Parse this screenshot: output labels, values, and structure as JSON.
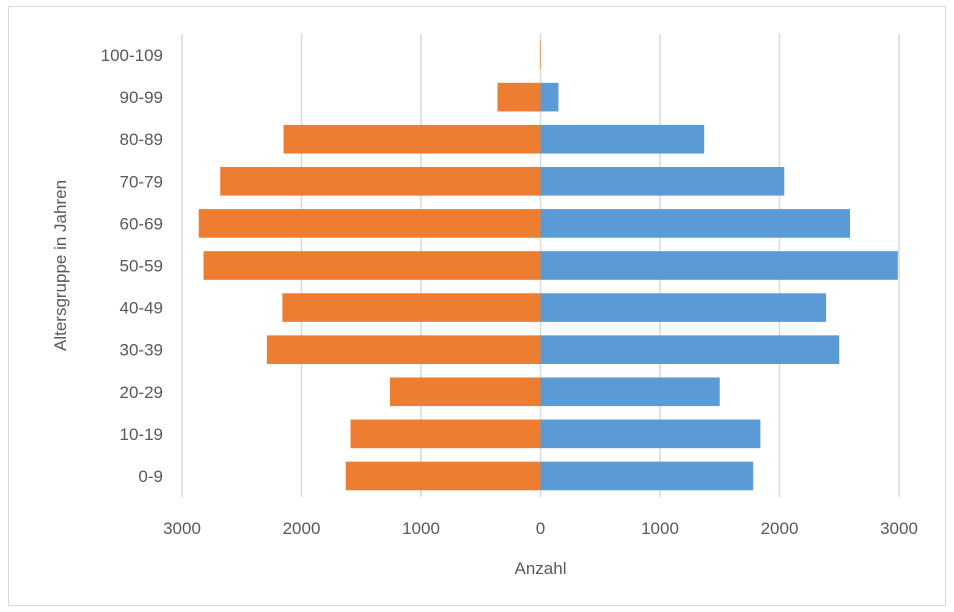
{
  "chart_data": {
    "type": "bar",
    "orientation": "horizontal",
    "layout": "population-pyramid",
    "title": "",
    "xlabel": "Anzahl",
    "ylabel": "Altersgruppe in Jahren",
    "categories": [
      "0-9",
      "10-19",
      "20-29",
      "30-39",
      "40-49",
      "50-59",
      "60-69",
      "70-79",
      "80-89",
      "90-99",
      "100-109"
    ],
    "series": [
      {
        "side": "left",
        "color": "#ED7D31",
        "values": [
          1630,
          1590,
          1260,
          2290,
          2160,
          2820,
          2860,
          2680,
          2150,
          360,
          5
        ]
      },
      {
        "side": "right",
        "color": "#5B9BD5",
        "values": [
          1780,
          1840,
          1500,
          2500,
          2390,
          2990,
          2590,
          2040,
          1370,
          150,
          0
        ]
      }
    ],
    "xlim": [
      -3000,
      3000
    ],
    "xticks": [
      -3000,
      -2000,
      -1000,
      0,
      1000,
      2000,
      3000
    ],
    "xtick_labels": [
      "3000",
      "2000",
      "1000",
      "0",
      "1000",
      "2000",
      "3000"
    ],
    "grid": true,
    "legend": "none"
  }
}
